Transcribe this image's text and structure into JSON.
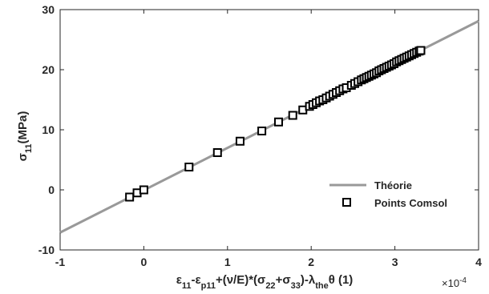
{
  "chart_data": {
    "type": "scatter",
    "title": "",
    "xlabel": "ε11-εp11+(ν/E)*(σ22+σ33)-λtheθ (1)",
    "ylabel": "σ11(MPa)",
    "xlim": [
      -1,
      4
    ],
    "ylim": [
      -10,
      30
    ],
    "x_exponent_label": "×10-4",
    "x_scale_factor": 0.0001,
    "xticks": [
      -1,
      0,
      1,
      2,
      3,
      4
    ],
    "yticks": [
      -10,
      0,
      10,
      20,
      30
    ],
    "grid": false,
    "legend_position": "bottom-right",
    "series": [
      {
        "name": "Théorie",
        "kind": "line",
        "color": "#999999",
        "x": [
          -1,
          4
        ],
        "y": [
          -7.1,
          28.1
        ]
      },
      {
        "name": "Points Comsol",
        "kind": "marker",
        "marker": "square",
        "color": "#000000",
        "x": [
          -0.17,
          -0.08,
          0.0,
          0.54,
          0.88,
          1.15,
          1.41,
          1.61,
          1.78,
          1.9,
          1.98,
          2.02,
          2.06,
          2.1,
          2.14,
          2.18,
          2.22,
          2.26,
          2.3,
          2.34,
          2.38,
          2.42,
          2.48,
          2.52,
          2.56,
          2.6,
          2.63,
          2.66,
          2.69,
          2.72,
          2.75,
          2.78,
          2.81,
          2.84,
          2.87,
          2.9,
          2.93,
          2.96,
          2.99,
          3.02,
          3.05,
          3.08,
          3.11,
          3.14,
          3.17,
          3.2,
          3.23,
          3.26,
          3.29,
          3.31
        ],
        "y": [
          -1.2,
          -0.5,
          0.0,
          3.8,
          6.2,
          8.1,
          9.8,
          11.3,
          12.4,
          13.3,
          13.9,
          14.2,
          14.5,
          14.8,
          15.0,
          15.3,
          15.6,
          15.9,
          16.2,
          16.5,
          16.8,
          17.0,
          17.4,
          17.7,
          18.0,
          18.3,
          18.5,
          18.7,
          18.9,
          19.1,
          19.3,
          19.5,
          19.8,
          20.0,
          20.2,
          20.4,
          20.6,
          20.8,
          21.0,
          21.3,
          21.5,
          21.7,
          21.9,
          22.1,
          22.3,
          22.5,
          22.7,
          22.9,
          23.1,
          23.2
        ]
      }
    ]
  }
}
